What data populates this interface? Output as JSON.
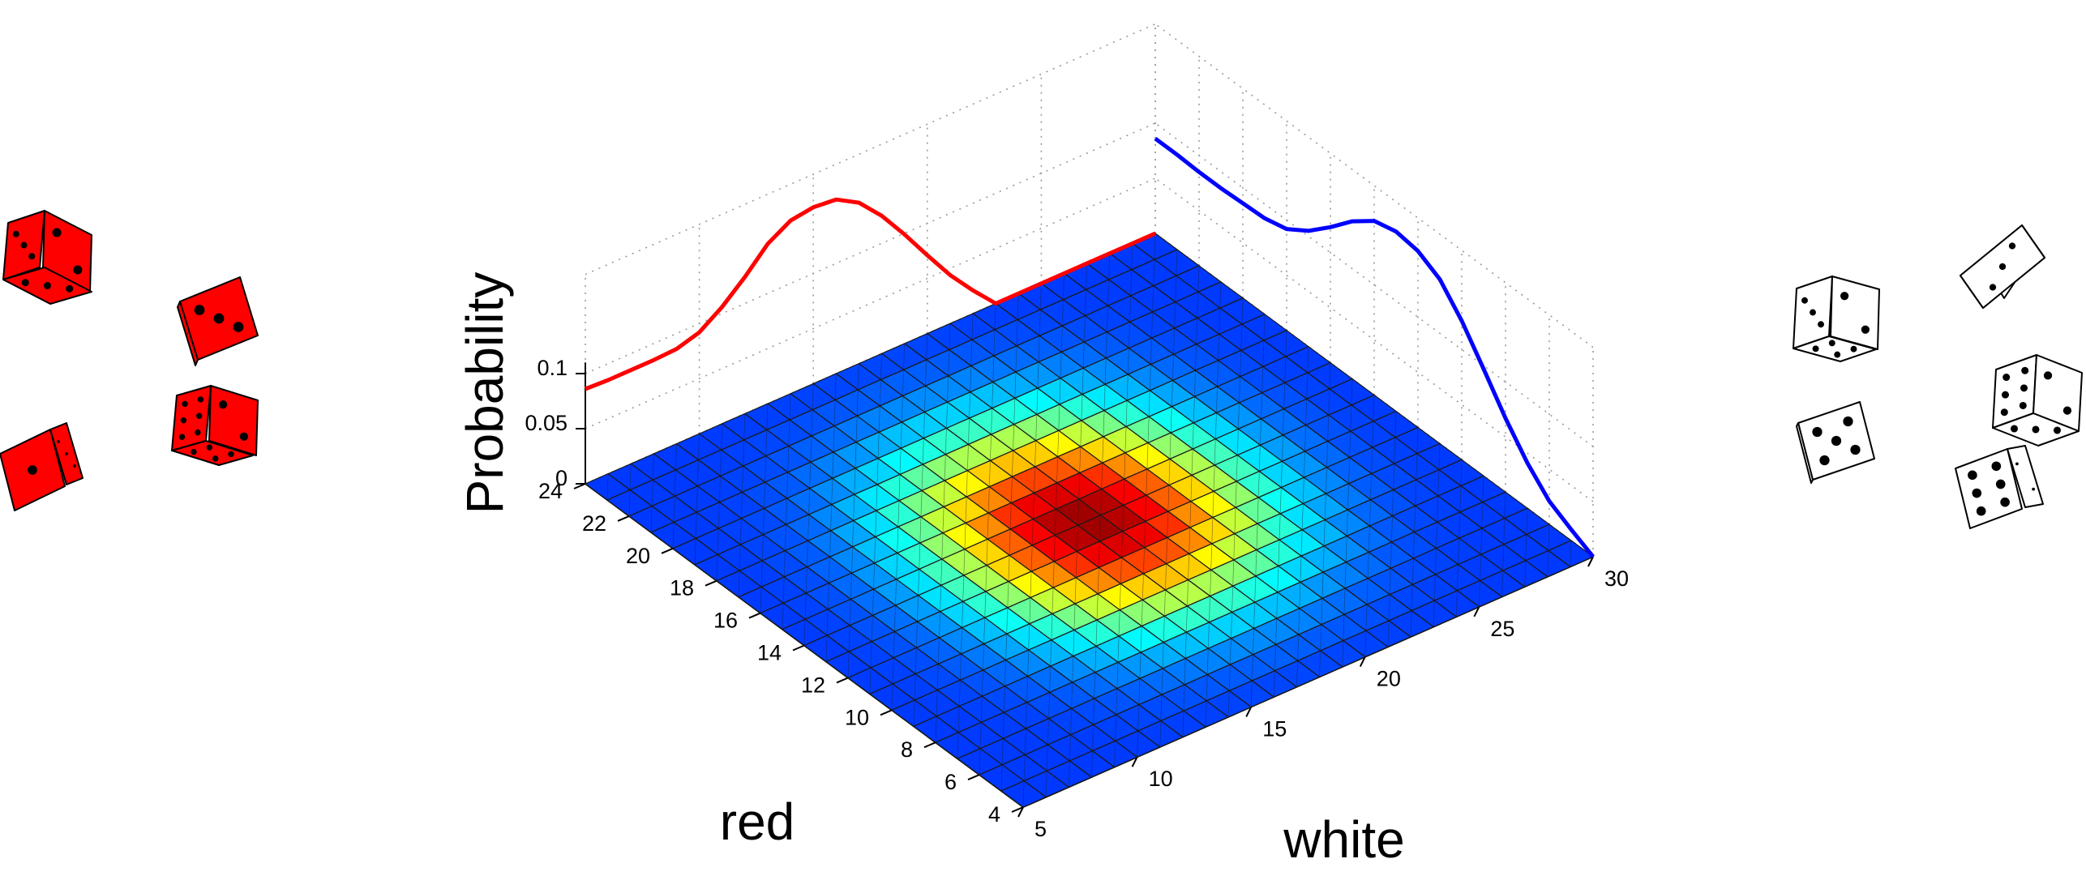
{
  "chart_data": {
    "type": "surface3d",
    "title": "",
    "zlabel": "Probability",
    "xlabel": "red",
    "ylabel": "white",
    "red_range": [
      4,
      24
    ],
    "white_range": [
      5,
      30
    ],
    "zlim": [
      0,
      0.1
    ],
    "red_ticks": [
      "4",
      "6",
      "8",
      "10",
      "12",
      "14",
      "16",
      "18",
      "20",
      "22",
      "24"
    ],
    "white_ticks": [
      "5",
      "10",
      "15",
      "20",
      "25",
      "30"
    ],
    "z_ticks": [
      "0",
      "0.05",
      "0.1"
    ],
    "grid": true,
    "colormap": "jet",
    "dice": {
      "red_count": 4,
      "white_count": 5,
      "sides": 6,
      "red_color": "#ff0000",
      "white_color": "#ffffff"
    },
    "marginal_red": {
      "color": "#0000ff",
      "x": [
        4,
        5,
        6,
        7,
        8,
        9,
        10,
        11,
        12,
        13,
        14,
        15,
        16,
        17,
        18,
        19,
        20,
        21,
        22,
        23,
        24
      ],
      "values": [
        0.0,
        0.01,
        0.021,
        0.041,
        0.067,
        0.097,
        0.126,
        0.149,
        0.16,
        0.163,
        0.158,
        0.143,
        0.123,
        0.105,
        0.092,
        0.087,
        0.086,
        0.085,
        0.085,
        0.086,
        0.086
      ]
    },
    "marginal_white": {
      "color": "#ff0000",
      "x": [
        5,
        6,
        7,
        8,
        9,
        10,
        11,
        12,
        13,
        14,
        15,
        16,
        17,
        18,
        19,
        20,
        21,
        22,
        23,
        24,
        25,
        26,
        27,
        28,
        29,
        30
      ],
      "values": [
        0.086,
        0.085,
        0.085,
        0.085,
        0.086,
        0.092,
        0.106,
        0.124,
        0.145,
        0.157,
        0.16,
        0.158,
        0.146,
        0.125,
        0.099,
        0.071,
        0.044,
        0.021,
        0.0,
        0.0,
        0.0,
        0.0,
        0.0,
        0.0,
        0.0,
        0.0
      ]
    }
  }
}
